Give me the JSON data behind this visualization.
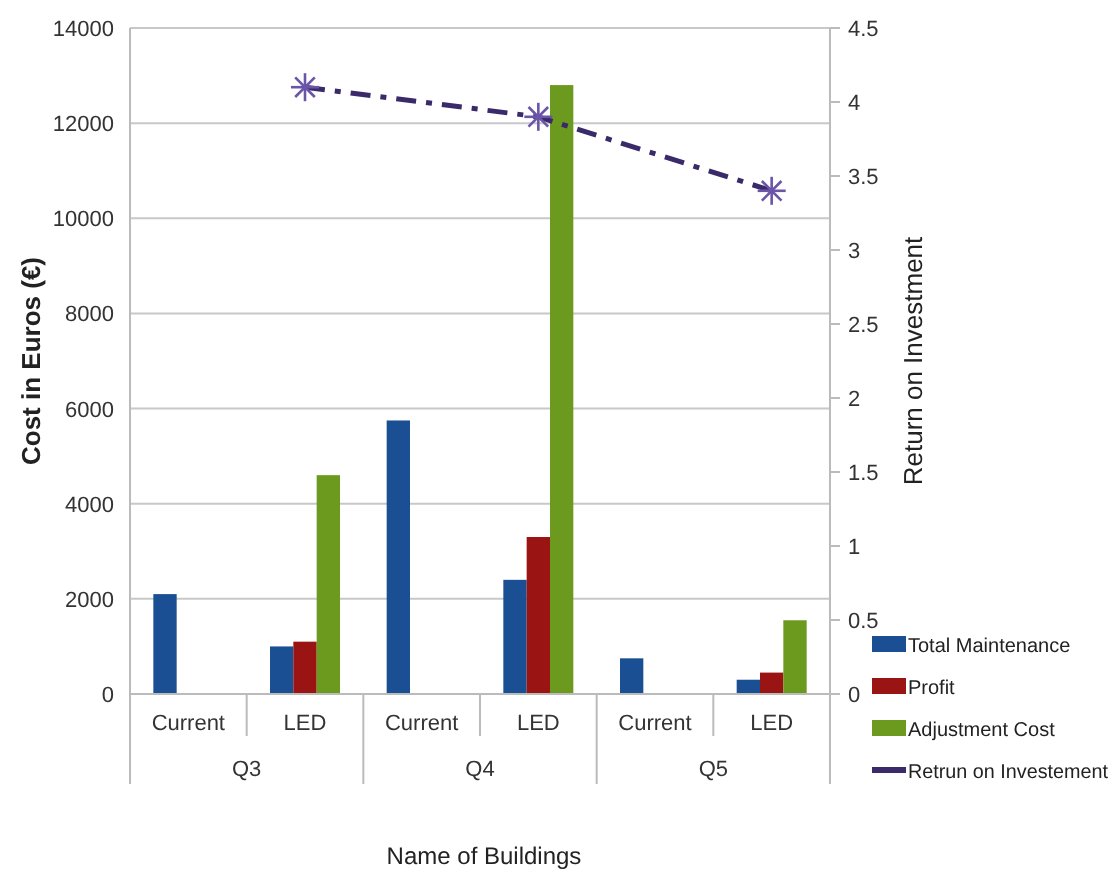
{
  "chart_data": {
    "type": "bar",
    "xlabel": "Name of Buildings",
    "ylabel": "Cost in Euros (€)",
    "y2label": "Return on Investment",
    "categories": [
      "Current",
      "LED",
      "Current",
      "LED",
      "Current",
      "LED"
    ],
    "annotations": [
      "Q3",
      "Q4",
      "Q5"
    ],
    "series": [
      {
        "name": "Total Maintenance",
        "color": "#1b4f93",
        "values": [
          2100,
          1000,
          5750,
          2400,
          750,
          300
        ]
      },
      {
        "name": "Profit",
        "color": "#9a1414",
        "values": [
          null,
          1100,
          null,
          3300,
          null,
          450
        ]
      },
      {
        "name": "Adjustment Cost",
        "color": "#6b9a1e",
        "values": [
          null,
          4600,
          null,
          12800,
          null,
          1550
        ]
      },
      {
        "name": "Retrun on Investement",
        "type": "line",
        "axis": "y2",
        "color": "#3a2a6a",
        "marker": "cross",
        "line_style": "dashed",
        "values": [
          null,
          4.1,
          null,
          3.9,
          null,
          3.4
        ]
      }
    ],
    "ylim": [
      0,
      14000
    ],
    "yticks": [
      0,
      2000,
      4000,
      6000,
      8000,
      10000,
      12000,
      14000
    ],
    "y2lim": [
      0,
      4.5
    ],
    "y2ticks": [
      0,
      0.5,
      1,
      1.5,
      2,
      2.5,
      3,
      3.5,
      4,
      4.5
    ],
    "grid": "y",
    "legend": "right"
  }
}
